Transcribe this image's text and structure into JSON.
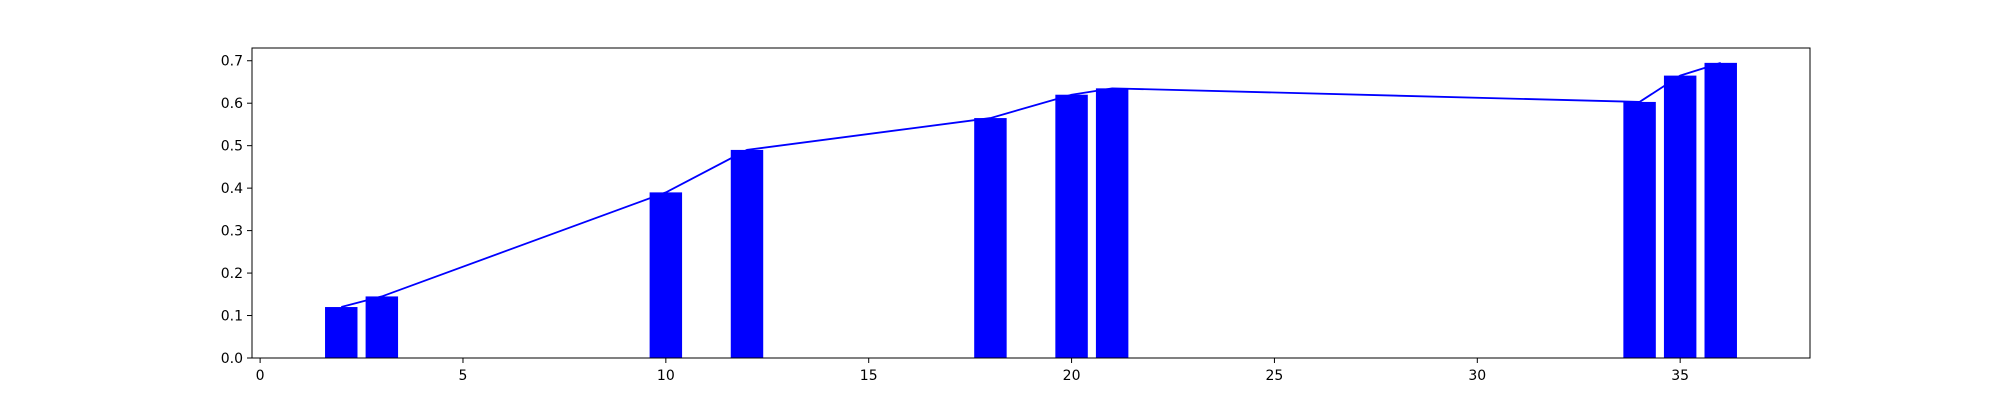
{
  "chart_data": {
    "type": "bar",
    "title": "",
    "xlabel": "",
    "ylabel": "",
    "xlim": [
      -0.2,
      38.2
    ],
    "ylim": [
      0,
      0.73
    ],
    "grid": false,
    "bar_color": "#0000ff",
    "line_color": "#0000ff",
    "bar_width": 0.8,
    "x": [
      2,
      3,
      10,
      12,
      18,
      20,
      21,
      34,
      35,
      36
    ],
    "values": [
      0.12,
      0.145,
      0.39,
      0.49,
      0.565,
      0.62,
      0.635,
      0.603,
      0.665,
      0.695
    ],
    "xticks": [
      0,
      5,
      10,
      15,
      20,
      25,
      30,
      35
    ],
    "yticks": [
      0.0,
      0.1,
      0.2,
      0.3,
      0.4,
      0.5,
      0.6,
      0.7
    ],
    "xtick_labels": [
      "0",
      "5",
      "10",
      "15",
      "20",
      "25",
      "30",
      "35"
    ],
    "ytick_labels": [
      "0.0",
      "0.1",
      "0.2",
      "0.3",
      "0.4",
      "0.5",
      "0.6",
      "0.7"
    ]
  }
}
